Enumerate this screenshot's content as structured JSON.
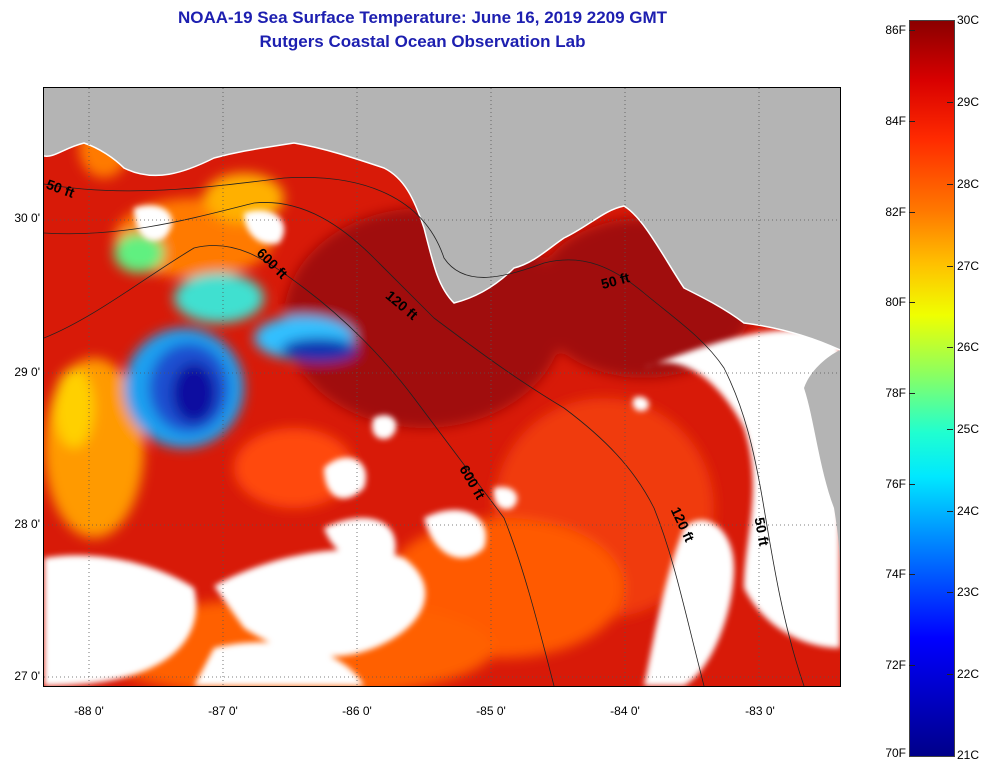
{
  "title_line1": "NOAA-19 Sea Surface Temperature:  June 16, 2019 2209 GMT",
  "title_line2": "Rutgers Coastal Ocean Observation Lab",
  "y_axis": {
    "ticks": [
      {
        "label": "30 0'",
        "lat": 30.0
      },
      {
        "label": "29 0'",
        "lat": 29.0
      },
      {
        "label": "28 0'",
        "lat": 28.0
      },
      {
        "label": "27 0'",
        "lat": 27.0
      }
    ],
    "lat_range": [
      26.97,
      30.9
    ]
  },
  "x_axis": {
    "ticks": [
      {
        "label": "-88 0'",
        "lon": -88.0
      },
      {
        "label": "-87 0'",
        "lon": -87.0
      },
      {
        "label": "-86 0'",
        "lon": -86.0
      },
      {
        "label": "-85 0'",
        "lon": -85.0
      },
      {
        "label": "-84 0'",
        "lon": -84.0
      },
      {
        "label": "-83 0'",
        "lon": -83.0
      }
    ],
    "lon_range": [
      -88.33,
      -82.4
    ]
  },
  "contour_labels": [
    {
      "text": "50 ft",
      "angle": 20
    },
    {
      "text": "600 ft",
      "angle": 45
    },
    {
      "text": "120 ft",
      "angle": 40
    },
    {
      "text": "50 ft",
      "angle": 15
    },
    {
      "text": "600 ft",
      "angle": 60
    },
    {
      "text": "120 ft",
      "angle": 65
    },
    {
      "text": "50 ft",
      "angle": 80
    }
  ],
  "colorbar": {
    "fahrenheit": [
      "86F",
      "84F",
      "82F",
      "80F",
      "78F",
      "76F",
      "74F",
      "72F",
      "70F"
    ],
    "celsius": [
      "30C",
      "29C",
      "28C",
      "27C",
      "26C",
      "25C",
      "24C",
      "23C",
      "22C",
      "21C"
    ],
    "f_range": [
      70,
      86
    ],
    "c_range": [
      21,
      30
    ]
  },
  "colors": {
    "title": "#1d1fb0",
    "land": "#b4b4b4",
    "cloud": "#ffffff",
    "sst_warm": "#d81a08",
    "sst_hot": "#8a0808",
    "sst_cool": "#1b4fd0",
    "sst_cold": "#1010a0"
  }
}
